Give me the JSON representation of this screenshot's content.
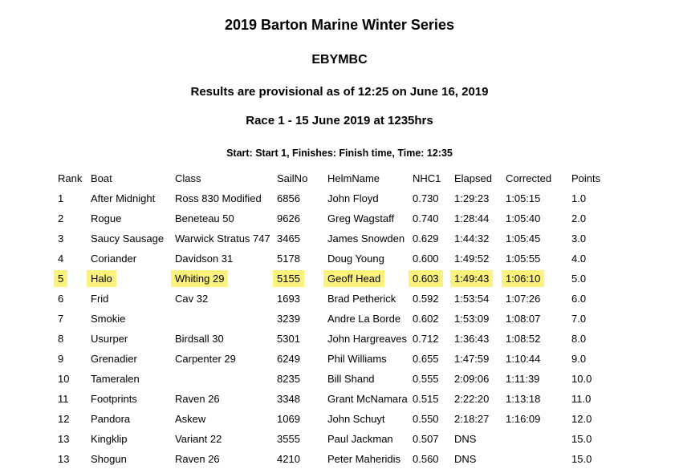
{
  "page": {
    "title": "2019 Barton Marine Winter Series",
    "club": "EBYMBC",
    "provisional_note": "Results are provisional as of 12:25 on June 16, 2019",
    "race_title": "Race 1 - 15 June 2019 at 1235hrs",
    "start_info": "Start: Start 1, Finishes: Finish time, Time: 12:35"
  },
  "colors": {
    "background": "#FFFFFF",
    "text": "#000000",
    "highlight": "#FBF27D"
  },
  "table": {
    "columns": [
      "Rank",
      "Boat",
      "Class",
      "SailNo",
      "HelmName",
      "NHC1",
      "Elapsed",
      "Corrected",
      "Points"
    ],
    "rows": [
      {
        "highlight": false,
        "cells": [
          "1",
          "After Midnight",
          "Ross 830 Modified",
          "6856",
          "John Floyd",
          "0.730",
          "1:29:23",
          "1:05:15",
          "1.0"
        ]
      },
      {
        "highlight": false,
        "cells": [
          "2",
          "Rogue",
          "Beneteau 50",
          "9626",
          "Greg Wagstaff",
          "0.740",
          "1:28:44",
          "1:05:40",
          "2.0"
        ]
      },
      {
        "highlight": false,
        "cells": [
          "3",
          "Saucy Sausage",
          "Warwick Stratus 747",
          "3465",
          "James Snowden",
          "0.629",
          "1:44:32",
          "1:05:45",
          "3.0"
        ]
      },
      {
        "highlight": false,
        "cells": [
          "4",
          "Coriander",
          "Davidson 31",
          "5178",
          "Doug Young",
          "0.600",
          "1:49:52",
          "1:05:55",
          "4.0"
        ]
      },
      {
        "highlight": true,
        "cells": [
          "5",
          "Halo",
          "Whiting 29",
          "5155",
          "Geoff Head",
          "0.603",
          "1:49:43",
          "1:06:10",
          "5.0"
        ]
      },
      {
        "highlight": false,
        "cells": [
          "6",
          "Frid",
          "Cav 32",
          "1693",
          "Brad Petherick",
          "0.592",
          "1:53:54",
          "1:07:26",
          "6.0"
        ]
      },
      {
        "highlight": false,
        "cells": [
          "7",
          "Smokie",
          "",
          "3239",
          "Andre La Borde",
          "0.602",
          "1:53:09",
          "1:08:07",
          "7.0"
        ]
      },
      {
        "highlight": false,
        "cells": [
          "8",
          "Usurper",
          "Birdsall 30",
          "5301",
          "John Hargreaves",
          "0.712",
          "1:36:43",
          "1:08:52",
          "8.0"
        ]
      },
      {
        "highlight": false,
        "cells": [
          "9",
          "Grenadier",
          "Carpenter 29",
          "6249",
          "Phil Williams",
          "0.655",
          "1:47:59",
          "1:10:44",
          "9.0"
        ]
      },
      {
        "highlight": false,
        "cells": [
          "10",
          "Tameralen",
          "",
          "8235",
          "Bill Shand",
          "0.555",
          "2:09:06",
          "1:11:39",
          "10.0"
        ]
      },
      {
        "highlight": false,
        "cells": [
          "11",
          "Footprints",
          "Raven 26",
          "3348",
          "Grant McNamara",
          "0.515",
          "2:22:20",
          "1:13:18",
          "11.0"
        ]
      },
      {
        "highlight": false,
        "cells": [
          "12",
          "Pandora",
          "Askew",
          "1069",
          "John Schuyt",
          "0.550",
          "2:18:27",
          "1:16:09",
          "12.0"
        ]
      },
      {
        "highlight": false,
        "cells": [
          "13",
          "Kingklip",
          "Variant 22",
          "3555",
          "Paul Jackman",
          "0.507",
          "DNS",
          "",
          "15.0"
        ]
      },
      {
        "highlight": false,
        "cells": [
          "13",
          "Shogun",
          "Raven 26",
          "4210",
          "Peter Maheridis",
          "0.560",
          "DNS",
          "",
          "15.0"
        ]
      }
    ]
  }
}
